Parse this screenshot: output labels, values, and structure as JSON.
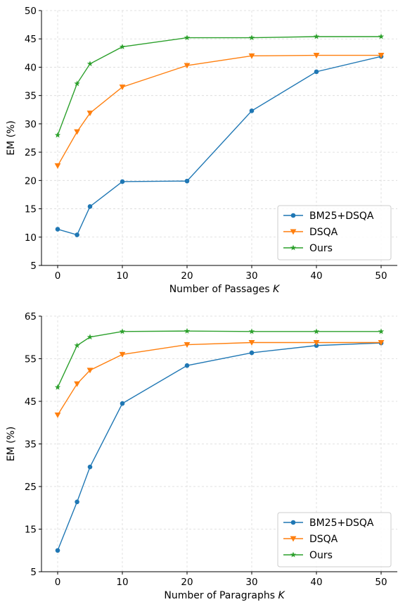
{
  "chart_data": [
    {
      "type": "line",
      "xlabel": "Number of Passages",
      "xlabel_var": "K",
      "ylabel": "EM (%)",
      "xlim": [
        -2.5,
        52.5
      ],
      "ylim": [
        5,
        50
      ],
      "xticks": [
        0,
        10,
        20,
        30,
        40,
        50
      ],
      "yticks": [
        5,
        10,
        15,
        20,
        25,
        30,
        35,
        40,
        45,
        50
      ],
      "grid": true,
      "legend_position": "lower-right",
      "series": [
        {
          "name": "BM25+DSQA",
          "color": "#1f77b4",
          "marker": "circle",
          "x": [
            0,
            3,
            5,
            10,
            20,
            30,
            40,
            50
          ],
          "y": [
            11.4,
            10.4,
            15.4,
            19.8,
            19.9,
            32.3,
            39.2,
            41.9
          ]
        },
        {
          "name": "DSQA",
          "color": "#ff7f0e",
          "marker": "triangle-down",
          "x": [
            0,
            3,
            5,
            10,
            20,
            30,
            40,
            50
          ],
          "y": [
            22.6,
            28.6,
            31.9,
            36.5,
            40.3,
            42.0,
            42.1,
            42.1
          ]
        },
        {
          "name": "Ours",
          "color": "#2ca02c",
          "marker": "star",
          "x": [
            0,
            3,
            5,
            10,
            20,
            30,
            40,
            50
          ],
          "y": [
            28.0,
            37.1,
            40.6,
            43.6,
            45.2,
            45.2,
            45.4,
            45.4
          ]
        }
      ]
    },
    {
      "type": "line",
      "xlabel": "Number of Paragraphs",
      "xlabel_var": "K",
      "ylabel": "EM (%)",
      "xlim": [
        -2.5,
        52.5
      ],
      "ylim": [
        5,
        65
      ],
      "xticks": [
        0,
        10,
        20,
        30,
        40,
        50
      ],
      "yticks": [
        5,
        15,
        25,
        35,
        45,
        55,
        65
      ],
      "grid": true,
      "legend_position": "lower-right",
      "series": [
        {
          "name": "BM25+DSQA",
          "color": "#1f77b4",
          "marker": "circle",
          "x": [
            0,
            3,
            5,
            10,
            20,
            30,
            40,
            50
          ],
          "y": [
            10.0,
            21.4,
            29.6,
            44.5,
            53.4,
            56.4,
            58.1,
            58.7
          ]
        },
        {
          "name": "DSQA",
          "color": "#ff7f0e",
          "marker": "triangle-down",
          "x": [
            0,
            3,
            5,
            10,
            20,
            30,
            40,
            50
          ],
          "y": [
            41.8,
            49.1,
            52.3,
            56.0,
            58.3,
            58.8,
            58.8,
            58.8
          ]
        },
        {
          "name": "Ours",
          "color": "#2ca02c",
          "marker": "star",
          "x": [
            0,
            3,
            5,
            10,
            20,
            30,
            40,
            50
          ],
          "y": [
            48.3,
            58.1,
            60.1,
            61.4,
            61.5,
            61.4,
            61.4,
            61.4
          ]
        }
      ]
    }
  ]
}
